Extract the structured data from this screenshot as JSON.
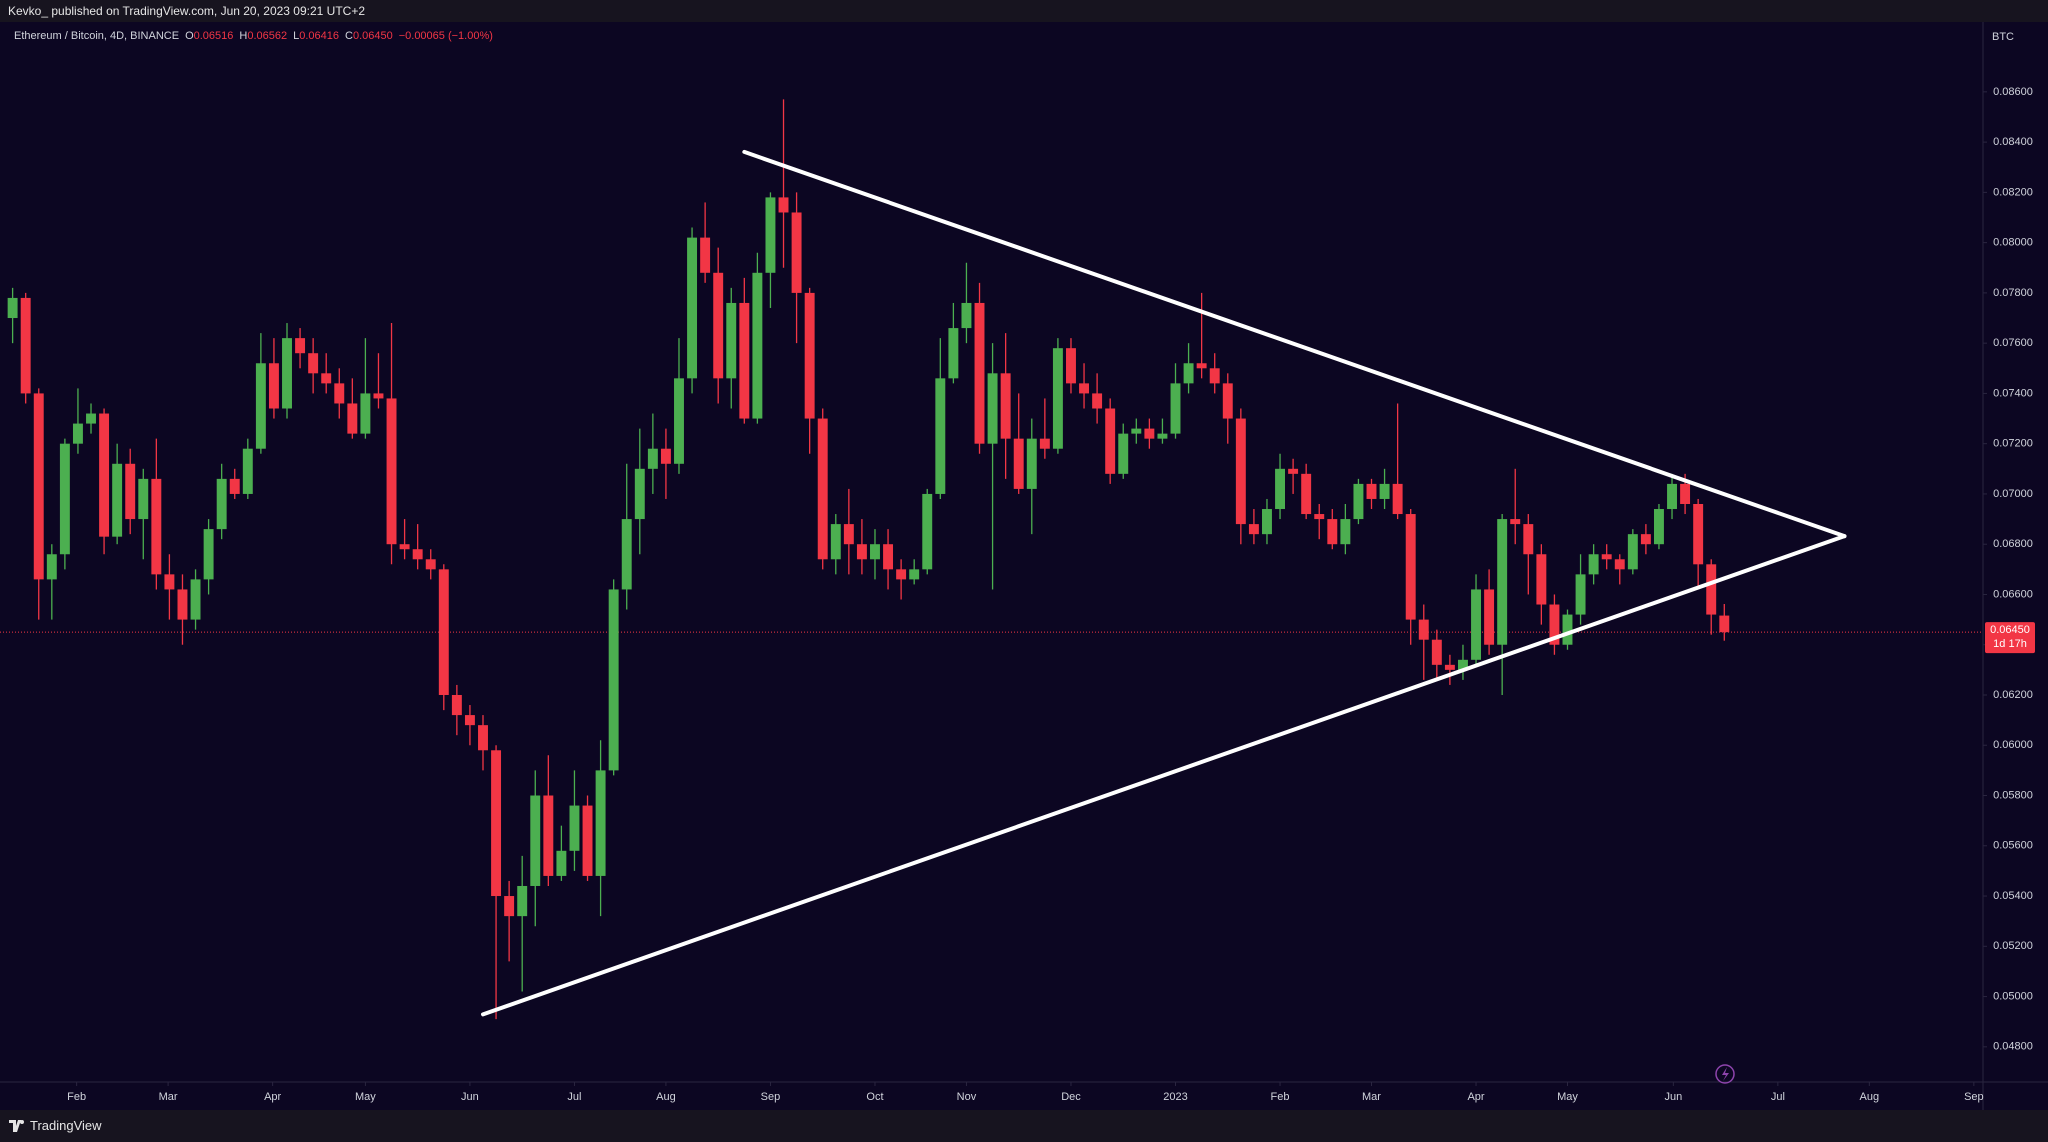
{
  "publication": "Kevko_ published on TradingView.com, Jun 20, 2023 09:21 UTC+2",
  "brand": "TradingView",
  "chart_data": {
    "type": "candlestick",
    "title": "Ethereum / Bitcoin, 4D, BINANCE",
    "legend_items": [
      {
        "key": "O",
        "value": "0.06516"
      },
      {
        "key": "H",
        "value": "0.06562"
      },
      {
        "key": "L",
        "value": "0.06416"
      },
      {
        "key": "C",
        "value": "0.06450"
      }
    ],
    "change": "−0.00065 (−1.00%)",
    "currency": "BTC",
    "up_color": "#4caf50",
    "down_color": "#f23645",
    "open": [
      0.077,
      0.0778,
      0.074,
      0.0666,
      0.0676,
      0.072,
      0.0728,
      0.0732,
      0.0683,
      0.0712,
      0.069,
      0.0706,
      0.0668,
      0.0662,
      0.065,
      0.0666,
      0.0686,
      0.0706,
      0.07,
      0.0718,
      0.0752,
      0.0734,
      0.0762,
      0.0756,
      0.0748,
      0.0744,
      0.0736,
      0.0724,
      0.074,
      0.0738,
      0.068,
      0.0678,
      0.0674,
      0.067,
      0.062,
      0.0612,
      0.0608,
      0.0598,
      0.054,
      0.0532,
      0.0544,
      0.058,
      0.0548,
      0.0558,
      0.0576,
      0.0548,
      0.059,
      0.0662,
      0.069,
      0.071,
      0.0718,
      0.0712,
      0.0746,
      0.0802,
      0.0788,
      0.0746,
      0.0776,
      0.073,
      0.0788,
      0.0818,
      0.0812,
      0.078,
      0.073,
      0.0674,
      0.0688,
      0.068,
      0.0674,
      0.068,
      0.067,
      0.0666,
      0.067,
      0.07,
      0.0746,
      0.0766,
      0.0776,
      0.072,
      0.0748,
      0.0722,
      0.0702,
      0.0722,
      0.0718,
      0.0758,
      0.0744,
      0.074,
      0.0734,
      0.0708,
      0.0724,
      0.0726,
      0.0722,
      0.0724,
      0.0744,
      0.0752,
      0.075,
      0.0744,
      0.073,
      0.0688,
      0.0684,
      0.0694,
      0.071,
      0.0708,
      0.0692,
      0.069,
      0.068,
      0.069,
      0.0704,
      0.0698,
      0.0704,
      0.0692,
      0.065,
      0.0642,
      0.0632,
      0.063,
      0.0634,
      0.0662,
      0.064,
      0.069,
      0.0688,
      0.0676,
      0.0656,
      0.064,
      0.0652,
      0.0668,
      0.0676,
      0.0674,
      0.067,
      0.0684,
      0.068,
      0.0694,
      0.0704,
      0.0696,
      0.0672,
      0.06516
    ],
    "high": [
      0.0782,
      0.078,
      0.0742,
      0.068,
      0.0722,
      0.0742,
      0.0736,
      0.0734,
      0.072,
      0.0718,
      0.071,
      0.0722,
      0.0676,
      0.0668,
      0.067,
      0.069,
      0.0712,
      0.071,
      0.0722,
      0.0764,
      0.0762,
      0.0768,
      0.0766,
      0.0762,
      0.0756,
      0.075,
      0.0746,
      0.0762,
      0.0756,
      0.0768,
      0.069,
      0.0688,
      0.0678,
      0.0672,
      0.0624,
      0.0616,
      0.0612,
      0.06,
      0.0546,
      0.0556,
      0.059,
      0.0596,
      0.0568,
      0.059,
      0.058,
      0.0602,
      0.0666,
      0.0712,
      0.0726,
      0.0732,
      0.0726,
      0.0762,
      0.0806,
      0.0816,
      0.0798,
      0.0782,
      0.0786,
      0.0796,
      0.082,
      0.0857,
      0.082,
      0.0782,
      0.0734,
      0.0692,
      0.0702,
      0.069,
      0.0686,
      0.0686,
      0.0674,
      0.0674,
      0.0702,
      0.0762,
      0.0776,
      0.0792,
      0.0784,
      0.076,
      0.0764,
      0.074,
      0.073,
      0.0738,
      0.0762,
      0.0762,
      0.0752,
      0.0748,
      0.0738,
      0.0728,
      0.073,
      0.073,
      0.073,
      0.0752,
      0.076,
      0.078,
      0.0756,
      0.0748,
      0.0734,
      0.0694,
      0.0698,
      0.0716,
      0.0714,
      0.0712,
      0.0696,
      0.0694,
      0.0696,
      0.0706,
      0.0706,
      0.071,
      0.0736,
      0.0694,
      0.0656,
      0.0646,
      0.0636,
      0.064,
      0.0668,
      0.067,
      0.0692,
      0.071,
      0.0692,
      0.068,
      0.066,
      0.0654,
      0.0676,
      0.068,
      0.068,
      0.0676,
      0.0686,
      0.0688,
      0.0696,
      0.0708,
      0.0708,
      0.0698,
      0.0674,
      0.06562
    ],
    "low": [
      0.076,
      0.0736,
      0.065,
      0.065,
      0.067,
      0.0716,
      0.0724,
      0.0676,
      0.068,
      0.0684,
      0.0674,
      0.0662,
      0.065,
      0.064,
      0.0646,
      0.066,
      0.0682,
      0.0698,
      0.0698,
      0.0716,
      0.073,
      0.073,
      0.075,
      0.074,
      0.074,
      0.073,
      0.0722,
      0.0722,
      0.0734,
      0.0672,
      0.0674,
      0.067,
      0.0666,
      0.0614,
      0.0604,
      0.06,
      0.059,
      0.0491,
      0.0514,
      0.0502,
      0.0528,
      0.0544,
      0.0546,
      0.055,
      0.0546,
      0.0532,
      0.0588,
      0.0654,
      0.0676,
      0.07,
      0.0698,
      0.0708,
      0.074,
      0.0784,
      0.0736,
      0.0734,
      0.0728,
      0.0728,
      0.0774,
      0.079,
      0.076,
      0.0716,
      0.067,
      0.0668,
      0.0668,
      0.0668,
      0.0666,
      0.0662,
      0.0658,
      0.0664,
      0.0668,
      0.0698,
      0.0744,
      0.076,
      0.0716,
      0.0662,
      0.0706,
      0.07,
      0.0684,
      0.0714,
      0.0716,
      0.074,
      0.0734,
      0.0728,
      0.0704,
      0.0706,
      0.072,
      0.0718,
      0.072,
      0.0722,
      0.074,
      0.0746,
      0.074,
      0.072,
      0.068,
      0.068,
      0.068,
      0.069,
      0.07,
      0.069,
      0.0682,
      0.0678,
      0.0676,
      0.0688,
      0.0694,
      0.0694,
      0.069,
      0.064,
      0.0626,
      0.0626,
      0.0624,
      0.0626,
      0.0632,
      0.0636,
      0.062,
      0.068,
      0.066,
      0.0648,
      0.0636,
      0.0638,
      0.0648,
      0.0664,
      0.067,
      0.0664,
      0.0668,
      0.0676,
      0.0678,
      0.069,
      0.0692,
      0.0662,
      0.0644,
      0.06416
    ],
    "close": [
      0.0778,
      0.074,
      0.0666,
      0.0676,
      0.072,
      0.0728,
      0.0732,
      0.0683,
      0.0712,
      0.069,
      0.0706,
      0.0668,
      0.0662,
      0.065,
      0.0666,
      0.0686,
      0.0706,
      0.07,
      0.0718,
      0.0752,
      0.0734,
      0.0762,
      0.0756,
      0.0748,
      0.0744,
      0.0736,
      0.0724,
      0.074,
      0.0738,
      0.068,
      0.0678,
      0.0674,
      0.067,
      0.062,
      0.0612,
      0.0608,
      0.0598,
      0.054,
      0.0532,
      0.0544,
      0.058,
      0.0548,
      0.0558,
      0.0576,
      0.0548,
      0.059,
      0.0662,
      0.069,
      0.071,
      0.0718,
      0.0712,
      0.0746,
      0.0802,
      0.0788,
      0.0746,
      0.0776,
      0.073,
      0.0788,
      0.0818,
      0.0812,
      0.078,
      0.073,
      0.0674,
      0.0688,
      0.068,
      0.0674,
      0.068,
      0.067,
      0.0666,
      0.067,
      0.07,
      0.0746,
      0.0766,
      0.0776,
      0.072,
      0.0748,
      0.0722,
      0.0702,
      0.0722,
      0.0718,
      0.0758,
      0.0744,
      0.074,
      0.0734,
      0.0708,
      0.0724,
      0.0726,
      0.0722,
      0.0724,
      0.0744,
      0.0752,
      0.075,
      0.0744,
      0.073,
      0.0688,
      0.0684,
      0.0694,
      0.071,
      0.0708,
      0.0692,
      0.069,
      0.068,
      0.069,
      0.0704,
      0.0698,
      0.0704,
      0.0692,
      0.065,
      0.0642,
      0.0632,
      0.063,
      0.0634,
      0.0662,
      0.064,
      0.069,
      0.0688,
      0.0676,
      0.0656,
      0.064,
      0.0652,
      0.0668,
      0.0676,
      0.0674,
      0.067,
      0.0684,
      0.068,
      0.0694,
      0.0704,
      0.0696,
      0.0672,
      0.0652,
      0.0645
    ],
    "xlim": [
      -0.2,
      150.8
    ],
    "xticks": [
      {
        "value": 4.9,
        "label": "Feb"
      },
      {
        "value": 11.9,
        "label": "Mar"
      },
      {
        "value": 19.9,
        "label": "Apr"
      },
      {
        "value": 27,
        "label": "May"
      },
      {
        "value": 35,
        "label": "Jun"
      },
      {
        "value": 43,
        "label": "Jul"
      },
      {
        "value": 50,
        "label": "Aug"
      },
      {
        "value": 58,
        "label": "Sep"
      },
      {
        "value": 66,
        "label": "Oct"
      },
      {
        "value": 73,
        "label": "Nov"
      },
      {
        "value": 81,
        "label": "Dec"
      },
      {
        "value": 89,
        "label": "2023"
      },
      {
        "value": 97,
        "label": "Feb"
      },
      {
        "value": 104,
        "label": "Mar"
      },
      {
        "value": 112,
        "label": "Apr"
      },
      {
        "value": 119,
        "label": "May"
      },
      {
        "value": 127.1,
        "label": "Jun"
      },
      {
        "value": 135.1,
        "label": "Jul"
      },
      {
        "value": 142.1,
        "label": "Aug"
      },
      {
        "value": 150.1,
        "label": "Sep"
      }
    ],
    "ylim": [
      0.0466,
      0.0887
    ],
    "yticks": [
      {
        "value": 0.048,
        "label": "0.04800"
      },
      {
        "value": 0.05,
        "label": "0.05000"
      },
      {
        "value": 0.052,
        "label": "0.05200"
      },
      {
        "value": 0.054,
        "label": "0.05400"
      },
      {
        "value": 0.056,
        "label": "0.05600"
      },
      {
        "value": 0.058,
        "label": "0.05800"
      },
      {
        "value": 0.06,
        "label": "0.06000"
      },
      {
        "value": 0.062,
        "label": "0.06200"
      },
      {
        "value": 0.064,
        "label": "0.06400"
      },
      {
        "value": 0.066,
        "label": "0.06600"
      },
      {
        "value": 0.068,
        "label": "0.06800"
      },
      {
        "value": 0.07,
        "label": "0.07000"
      },
      {
        "value": 0.072,
        "label": "0.07200"
      },
      {
        "value": 0.074,
        "label": "0.07400"
      },
      {
        "value": 0.076,
        "label": "0.07600"
      },
      {
        "value": 0.078,
        "label": "0.07800"
      },
      {
        "value": 0.08,
        "label": "0.08000"
      },
      {
        "value": 0.082,
        "label": "0.08200"
      },
      {
        "value": 0.084,
        "label": "0.08400"
      },
      {
        "value": 0.086,
        "label": "0.08600"
      }
    ],
    "trendlines": [
      {
        "x": [
          56,
          140.2
        ],
        "y": [
          0.08361,
          0.06832
        ]
      },
      {
        "x": [
          36,
          140.2
        ],
        "y": [
          0.04929,
          0.06832
        ]
      }
    ],
    "trendline_color": "#ffffff",
    "last_price": {
      "value": 0.0645,
      "label": "0.06450"
    },
    "countdown": "1d 17h"
  }
}
